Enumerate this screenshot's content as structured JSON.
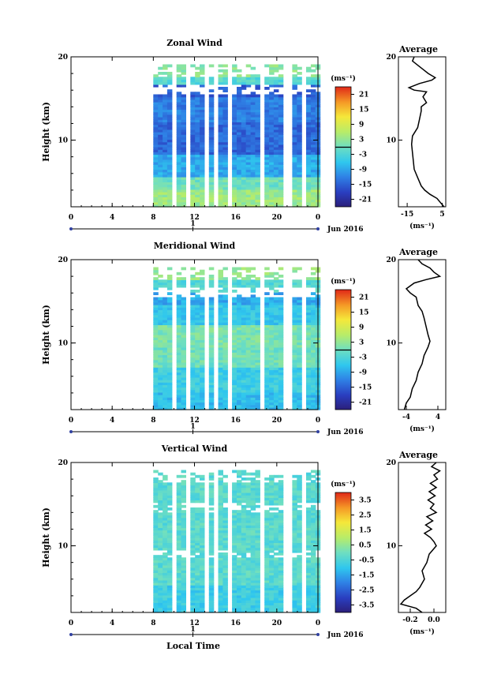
{
  "xlabel_bottom": "Local Time",
  "date_label": "Jun 2016",
  "day_label": "1",
  "colorbar_unit": "(ms⁻¹)",
  "average_unit": "(ms⁻¹)",
  "chart_data": [
    {
      "type": "heatmap",
      "title": "Zonal Wind",
      "ylabel": "Height (km)",
      "xlim": [
        0,
        24
      ],
      "ylim": [
        2,
        20
      ],
      "xticks": [
        "0",
        "4",
        "8",
        "12",
        "16",
        "20",
        "0"
      ],
      "yticks": [
        "10",
        "20"
      ],
      "data_start_hour": 8,
      "colorbar_ticks": [
        "21",
        "15",
        "9",
        "3",
        "-3",
        "-9",
        "-15",
        "-21"
      ],
      "colorbar_range": [
        -24,
        24
      ],
      "profile": {
        "title": "Average",
        "xticks": [
          "-15",
          "5"
        ],
        "xlim": [
          -20,
          7
        ],
        "points": [
          [
            -11,
            20
          ],
          [
            -12,
            19.5
          ],
          [
            -9,
            19
          ],
          [
            -6,
            18.5
          ],
          [
            -3,
            18
          ],
          [
            1,
            17.5
          ],
          [
            -1,
            17.2
          ],
          [
            -8,
            16.8
          ],
          [
            -14,
            16.3
          ],
          [
            -11,
            16
          ],
          [
            -4,
            15.8
          ],
          [
            -6,
            15.2
          ],
          [
            -4,
            14.5
          ],
          [
            -7,
            14
          ],
          [
            -7,
            13.5
          ],
          [
            -8,
            12.5
          ],
          [
            -9,
            11.5
          ],
          [
            -12,
            10.5
          ],
          [
            -12.5,
            9.5
          ],
          [
            -12,
            8.5
          ],
          [
            -11.5,
            7.5
          ],
          [
            -11,
            6.5
          ],
          [
            -9,
            5.5
          ],
          [
            -7,
            4.5
          ],
          [
            -5,
            4
          ],
          [
            -2,
            3.5
          ],
          [
            2,
            3
          ],
          [
            4,
            2.5
          ],
          [
            6,
            2
          ]
        ]
      }
    },
    {
      "type": "heatmap",
      "title": "Meridional Wind",
      "ylabel": "Height (km)",
      "xlim": [
        0,
        24
      ],
      "ylim": [
        2,
        20
      ],
      "xticks": [
        "0",
        "4",
        "8",
        "12",
        "16",
        "20",
        "0"
      ],
      "yticks": [
        "10",
        "20"
      ],
      "data_start_hour": 8,
      "colorbar_ticks": [
        "21",
        "15",
        "9",
        "3",
        "-3",
        "-9",
        "-15",
        "-21"
      ],
      "colorbar_range": [
        -24,
        24
      ],
      "profile": {
        "title": "Average",
        "xticks": [
          "-4",
          "4"
        ],
        "xlim": [
          -6,
          6
        ],
        "points": [
          [
            -1,
            20
          ],
          [
            0,
            19.5
          ],
          [
            2,
            19
          ],
          [
            3,
            18.5
          ],
          [
            4.5,
            18
          ],
          [
            1,
            17.6
          ],
          [
            -2,
            17.2
          ],
          [
            -4,
            16.5
          ],
          [
            -3,
            16
          ],
          [
            -1.5,
            15.5
          ],
          [
            -1,
            14.5
          ],
          [
            0,
            13.8
          ],
          [
            0.5,
            13
          ],
          [
            1,
            12
          ],
          [
            1.5,
            11
          ],
          [
            2,
            10.2
          ],
          [
            1.5,
            9.5
          ],
          [
            0.5,
            8.5
          ],
          [
            0,
            7.5
          ],
          [
            -1,
            6.5
          ],
          [
            -1.5,
            5.5
          ],
          [
            -2.5,
            4.5
          ],
          [
            -3,
            3.5
          ],
          [
            -4,
            2.8
          ],
          [
            -4.5,
            2
          ]
        ]
      }
    },
    {
      "type": "heatmap",
      "title": "Vertical Wind",
      "ylabel": "Height (km)",
      "xlim": [
        0,
        24
      ],
      "ylim": [
        2,
        20
      ],
      "xticks": [
        "0",
        "4",
        "8",
        "12",
        "16",
        "20",
        "0"
      ],
      "yticks": [
        "10",
        "20"
      ],
      "data_start_hour": 8,
      "colorbar_ticks": [
        "3.5",
        "2.5",
        "1.5",
        "0.5",
        "-0.5",
        "-1.5",
        "-2.5",
        "-3.5"
      ],
      "colorbar_range": [
        -4,
        4
      ],
      "profile": {
        "title": "Average",
        "xticks": [
          "-0.2",
          "0.0"
        ],
        "xlim": [
          -0.3,
          0.1
        ],
        "points": [
          [
            0.02,
            20
          ],
          [
            -0.02,
            19.5
          ],
          [
            0.05,
            19
          ],
          [
            0.0,
            18.5
          ],
          [
            0.03,
            18
          ],
          [
            -0.03,
            17.5
          ],
          [
            0.02,
            17
          ],
          [
            -0.04,
            16.5
          ],
          [
            0.01,
            16
          ],
          [
            -0.05,
            15.5
          ],
          [
            0.0,
            15
          ],
          [
            -0.03,
            14.5
          ],
          [
            0.02,
            14
          ],
          [
            -0.06,
            13.5
          ],
          [
            -0.01,
            13
          ],
          [
            -0.07,
            12.5
          ],
          [
            -0.02,
            12
          ],
          [
            -0.08,
            11.5
          ],
          [
            -0.03,
            11
          ],
          [
            0.0,
            10.5
          ],
          [
            0.02,
            10
          ],
          [
            -0.04,
            9
          ],
          [
            -0.06,
            8
          ],
          [
            -0.1,
            7
          ],
          [
            -0.08,
            6
          ],
          [
            -0.12,
            5
          ],
          [
            -0.15,
            4.5
          ],
          [
            -0.2,
            4
          ],
          [
            -0.25,
            3.5
          ],
          [
            -0.28,
            3
          ],
          [
            -0.15,
            2.5
          ],
          [
            -0.1,
            2
          ]
        ]
      }
    }
  ]
}
